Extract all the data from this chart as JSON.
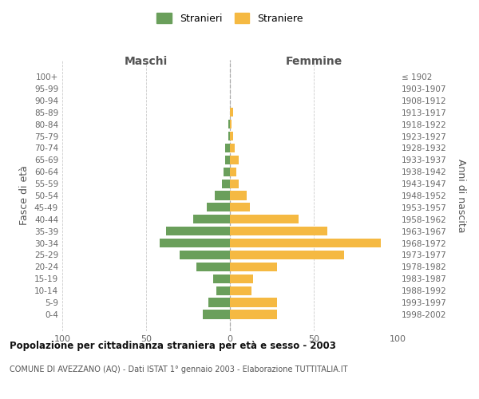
{
  "age_groups": [
    "100+",
    "95-99",
    "90-94",
    "85-89",
    "80-84",
    "75-79",
    "70-74",
    "65-69",
    "60-64",
    "55-59",
    "50-54",
    "45-49",
    "40-44",
    "35-39",
    "30-34",
    "25-29",
    "20-24",
    "15-19",
    "10-14",
    "5-9",
    "0-4"
  ],
  "birth_years": [
    "≤ 1902",
    "1903-1907",
    "1908-1912",
    "1913-1917",
    "1918-1922",
    "1923-1927",
    "1928-1932",
    "1933-1937",
    "1938-1942",
    "1943-1947",
    "1948-1952",
    "1953-1957",
    "1958-1962",
    "1963-1967",
    "1968-1972",
    "1973-1977",
    "1978-1982",
    "1983-1987",
    "1988-1992",
    "1993-1997",
    "1998-2002"
  ],
  "maschi": [
    0,
    0,
    0,
    0,
    1,
    1,
    3,
    3,
    4,
    5,
    9,
    14,
    22,
    38,
    42,
    30,
    20,
    10,
    8,
    13,
    16
  ],
  "femmine": [
    0,
    0,
    0,
    2,
    1,
    2,
    3,
    5,
    4,
    5,
    10,
    12,
    41,
    58,
    90,
    68,
    28,
    14,
    13,
    28,
    28
  ],
  "color_maschi": "#6a9f5b",
  "color_femmine": "#f5b942",
  "title": "Popolazione per cittadinanza straniera per età e sesso - 2003",
  "subtitle": "COMUNE DI AVEZZANO (AQ) - Dati ISTAT 1° gennaio 2003 - Elaborazione TUTTITALIA.IT",
  "ylabel_left": "Fasce di età",
  "ylabel_right": "Anni di nascita",
  "col_header_left": "Maschi",
  "col_header_right": "Femmine",
  "legend_maschi": "Stranieri",
  "legend_femmine": "Straniere",
  "xlim": 100,
  "background_color": "#ffffff",
  "grid_color": "#cccccc"
}
